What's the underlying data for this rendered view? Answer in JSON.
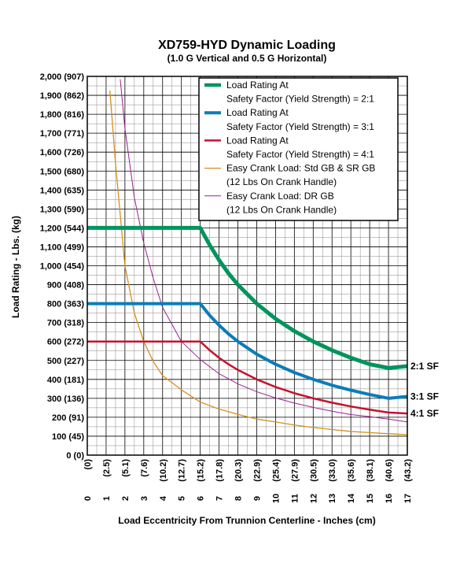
{
  "chart_data": {
    "type": "line",
    "title": "XD759-HYD Dynamic Loading",
    "subtitle": "(1.0 G Vertical and 0.5 G Horizontal)",
    "xlabel": "Load Eccentricity From Trunnion Centerline - Inches (cm)",
    "ylabel": "Load Rating - Lbs. (kg)",
    "xlim": [
      0,
      17
    ],
    "ylim": [
      0,
      2000
    ],
    "grid": true,
    "legend_position": "top-right",
    "x_ticks": [
      0,
      1,
      2,
      3,
      4,
      5,
      6,
      7,
      8,
      9,
      10,
      11,
      12,
      13,
      14,
      15,
      16,
      17
    ],
    "x_tick_labels": [
      "0",
      "1",
      "2",
      "3",
      "4",
      "5",
      "6",
      "7",
      "8",
      "9",
      "10",
      "11",
      "12",
      "13",
      "14",
      "15",
      "16",
      "17"
    ],
    "x_tick_labels_cm": [
      "(0)",
      "(2.5)",
      "(5.1)",
      "(7.6)",
      "(10.2)",
      "(12.7)",
      "(15.2)",
      "(17.8)",
      "(20.3)",
      "(22.9)",
      "(25.4)",
      "(27.9)",
      "(30.5)",
      "(33.0)",
      "(35.6)",
      "(38.1)",
      "(40.6)",
      "(43.2)"
    ],
    "y_ticks": [
      0,
      100,
      200,
      300,
      400,
      500,
      600,
      700,
      800,
      900,
      1000,
      1100,
      1200,
      1300,
      1400,
      1500,
      1600,
      1700,
      1800,
      1900,
      2000
    ],
    "y_tick_labels": [
      "0  (0)",
      "100  (45)",
      "200  (91)",
      "300  (136)",
      "400  (181)",
      "500  (227)",
      "600  (272)",
      "700  (318)",
      "800  (363)",
      "900  (408)",
      "1,000  (454)",
      "1,100  (499)",
      "1,200  (544)",
      "1,300  (590)",
      "1,400  (635)",
      "1,500  (680)",
      "1,600  (726)",
      "1,700  (771)",
      "1,800  (816)",
      "1,900  (862)",
      "2,000  (907)"
    ],
    "series": [
      {
        "name": "Load Rating At\nSafety Factor (Yield Strength) = 2:1",
        "end_label": "2:1 SF",
        "color": "#00945e",
        "stroke_width": 5,
        "x": [
          0,
          6,
          6.5,
          7,
          7.5,
          8,
          9,
          10,
          11,
          12,
          13,
          14,
          15,
          16,
          17
        ],
        "y": [
          1200,
          1200,
          1110,
          1030,
          960,
          900,
          800,
          720,
          655,
          600,
          554,
          514,
          480,
          460,
          470
        ]
      },
      {
        "name": "Load Rating At\nSafety Factor (Yield Strength) = 3:1",
        "end_label": "3:1 SF",
        "color": "#0a7db8",
        "stroke_width": 4,
        "x": [
          0,
          6,
          6.5,
          7,
          7.5,
          8,
          9,
          10,
          11,
          12,
          13,
          14,
          15,
          16,
          17
        ],
        "y": [
          800,
          800,
          738,
          686,
          640,
          600,
          533,
          480,
          436,
          400,
          369,
          343,
          320,
          300,
          310
        ]
      },
      {
        "name": "Load Rating At\nSafety Factor (Yield Strength) = 4:1",
        "end_label": "4:1 SF",
        "color": "#c8102e",
        "stroke_width": 2.5,
        "x": [
          0,
          6,
          6.5,
          7,
          7.5,
          8,
          9,
          10,
          11,
          12,
          13,
          14,
          15,
          16,
          17
        ],
        "y": [
          600,
          600,
          554,
          514,
          480,
          450,
          400,
          360,
          327,
          300,
          277,
          257,
          240,
          225,
          220
        ]
      },
      {
        "name": "Easy Crank Load: Std GB & SR  GB\n(12 Lbs On Crank Handle)",
        "color": "#d4901a",
        "stroke_width": 1.3,
        "x": [
          1.2,
          1.5,
          2,
          2.5,
          3,
          3.5,
          4,
          5,
          6,
          7,
          8,
          9,
          10,
          11,
          12,
          13,
          14,
          15,
          16,
          17
        ],
        "y": [
          1925,
          1540,
          1000,
          750,
          600,
          495,
          420,
          345,
          280,
          243,
          215,
          190,
          175,
          159,
          146,
          135,
          125,
          119,
          113,
          108
        ]
      },
      {
        "name": "Easy Crank Load: DR GB\n(12 Lbs On Crank Handle)",
        "color": "#9b1f95",
        "stroke_width": 1,
        "x": [
          1.75,
          2,
          2.5,
          3,
          3.5,
          4,
          5,
          6,
          7,
          8,
          9,
          10,
          11,
          12,
          13,
          14,
          15,
          16,
          17
        ],
        "y": [
          1985,
          1725,
          1360,
          1120,
          935,
          780,
          600,
          505,
          430,
          376,
          335,
          302,
          275,
          252,
          232,
          214,
          203,
          190,
          175
        ]
      }
    ]
  }
}
